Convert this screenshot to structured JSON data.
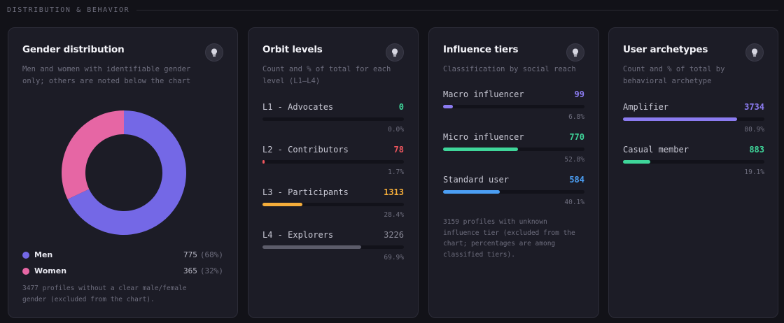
{
  "section": {
    "title": "DISTRIBUTION & BEHAVIOR"
  },
  "colors": {
    "purple": "#7468e6",
    "pink": "#e666a4",
    "green": "#3fd69a",
    "red": "#f0565e",
    "orange": "#f5ad3a",
    "gray": "#5c5c6a",
    "blue": "#4b9ef3",
    "violet": "#8b7bf0"
  },
  "gender": {
    "title": "Gender distribution",
    "subtitle": [
      "Men and women with identifiable gender",
      "only; others are noted below the chart"
    ],
    "chart_data": {
      "type": "pie",
      "categories": [
        "Men",
        "Women"
      ],
      "values": [
        775,
        365
      ]
    },
    "legend": [
      {
        "label": "Men",
        "count": "775",
        "pct": "(68%)",
        "color": "#7468e6"
      },
      {
        "label": "Women",
        "count": "365",
        "pct": "(32%)",
        "color": "#e666a4"
      }
    ],
    "note": [
      "3477 profiles without a clear male/female",
      "gender (excluded from the chart)."
    ]
  },
  "orbit": {
    "title": "Orbit levels",
    "subtitle": [
      "Count and % of total for each",
      "level (L1–L4)"
    ],
    "rows": [
      {
        "label": "L1 - Advocates",
        "value": "0",
        "pct": "0.0%",
        "fraction": 0.0,
        "color": "#3fd69a"
      },
      {
        "label": "L2 - Contributors",
        "value": "78",
        "pct": "1.7%",
        "fraction": 0.017,
        "color": "#f0565e"
      },
      {
        "label": "L3 - Participants",
        "value": "1313",
        "pct": "28.4%",
        "fraction": 0.284,
        "color": "#f5ad3a"
      },
      {
        "label": "L4 - Explorers",
        "value": "3226",
        "pct": "69.9%",
        "fraction": 0.699,
        "color": "#5c5c6a"
      }
    ]
  },
  "influence": {
    "title": "Influence tiers",
    "subtitle": [
      "Classification by social reach"
    ],
    "rows": [
      {
        "label": "Macro influencer",
        "value": "99",
        "pct": "6.8%",
        "fraction": 0.068,
        "color": "#8b7bf0"
      },
      {
        "label": "Micro influencer",
        "value": "770",
        "pct": "52.8%",
        "fraction": 0.528,
        "color": "#3fd69a"
      },
      {
        "label": "Standard user",
        "value": "584",
        "pct": "40.1%",
        "fraction": 0.401,
        "color": "#4b9ef3"
      }
    ],
    "note": [
      "3159 profiles with unknown",
      "influence tier (excluded from the",
      "chart; percentages are among",
      "classified tiers)."
    ]
  },
  "archetypes": {
    "title": "User archetypes",
    "subtitle": [
      "Count and % of total by",
      "behavioral archetype"
    ],
    "rows": [
      {
        "label": "Amplifier",
        "value": "3734",
        "pct": "80.9%",
        "fraction": 0.809,
        "color": "#8b7bf0"
      },
      {
        "label": "Casual member",
        "value": "883",
        "pct": "19.1%",
        "fraction": 0.191,
        "color": "#3fd69a"
      }
    ]
  }
}
